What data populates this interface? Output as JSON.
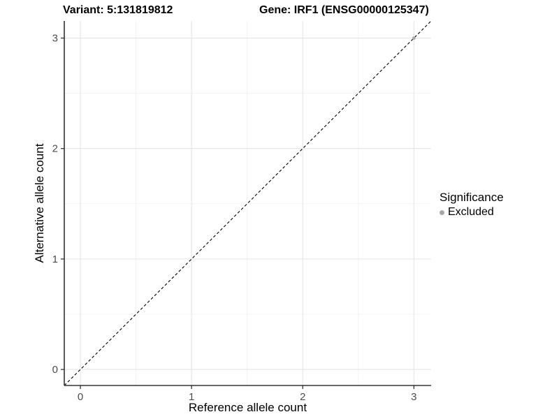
{
  "titles": {
    "variant": "Variant: 5:131819812",
    "gene": "Gene: IRF1 (ENSG00000125347)"
  },
  "chart_data": {
    "type": "scatter",
    "xlabel": "Reference allele count",
    "ylabel": "Alternative allele count",
    "x_ticks": [
      0,
      1,
      2,
      3
    ],
    "y_ticks": [
      0,
      1,
      2,
      3
    ],
    "xlim": [
      -0.145,
      3.155
    ],
    "ylim": [
      -0.145,
      3.155
    ],
    "grid": {
      "major": true,
      "minor": true
    },
    "identity_line": {
      "slope": 1,
      "intercept": 0,
      "style": "dashed",
      "color": "#000000"
    },
    "series": [
      {
        "name": "Excluded",
        "color": "#a8a8a8",
        "points": [
          [
            3,
            3
          ]
        ]
      }
    ],
    "legend": {
      "title": "Significance",
      "position": "right",
      "items": [
        {
          "label": "Excluded",
          "color": "#a8a8a8"
        }
      ]
    },
    "colors": {
      "grid_major": "#e4e4e4",
      "grid_minor": "#f1f1f1",
      "axis_line": "#333333",
      "tick_label": "#4d4d4d",
      "background": "#ffffff"
    }
  }
}
